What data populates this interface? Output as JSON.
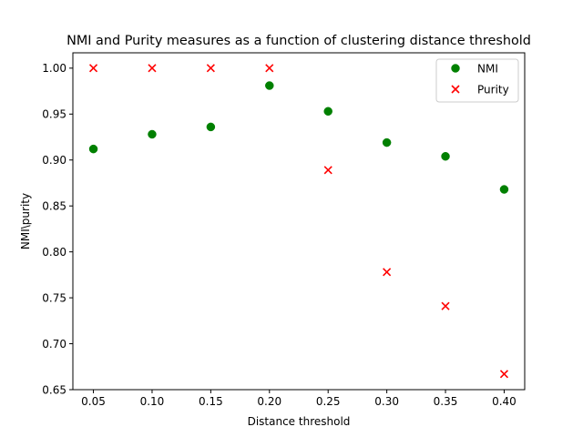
{
  "chart_data": {
    "type": "scatter",
    "title": "NMI and Purity measures as a function of clustering distance threshold",
    "xlabel": "Distance threshold",
    "ylabel": "NMI\\purity",
    "xlim": [
      0.0325,
      0.4175
    ],
    "ylim": [
      0.65,
      1.0167
    ],
    "xticks": [
      0.05,
      0.1,
      0.15,
      0.2,
      0.25,
      0.3,
      0.35,
      0.4
    ],
    "xtick_labels": [
      "0.05",
      "0.10",
      "0.15",
      "0.20",
      "0.25",
      "0.30",
      "0.35",
      "0.40"
    ],
    "yticks": [
      0.65,
      0.7,
      0.75,
      0.8,
      0.85,
      0.9,
      0.95,
      1.0
    ],
    "ytick_labels": [
      "0.65",
      "0.70",
      "0.75",
      "0.80",
      "0.85",
      "0.90",
      "0.95",
      "1.00"
    ],
    "grid": false,
    "legend_position": "top-right",
    "series": [
      {
        "name": "NMI",
        "marker": "circle",
        "color": "#008000",
        "x": [
          0.05,
          0.1,
          0.15,
          0.2,
          0.25,
          0.3,
          0.35,
          0.4
        ],
        "y": [
          0.912,
          0.928,
          0.936,
          0.981,
          0.953,
          0.919,
          0.904,
          0.868
        ]
      },
      {
        "name": "Purity",
        "marker": "x",
        "color": "#ff0000",
        "x": [
          0.05,
          0.1,
          0.15,
          0.2,
          0.25,
          0.3,
          0.35,
          0.4
        ],
        "y": [
          1.0,
          1.0,
          1.0,
          1.0,
          0.889,
          0.778,
          0.741,
          0.667
        ]
      }
    ]
  }
}
